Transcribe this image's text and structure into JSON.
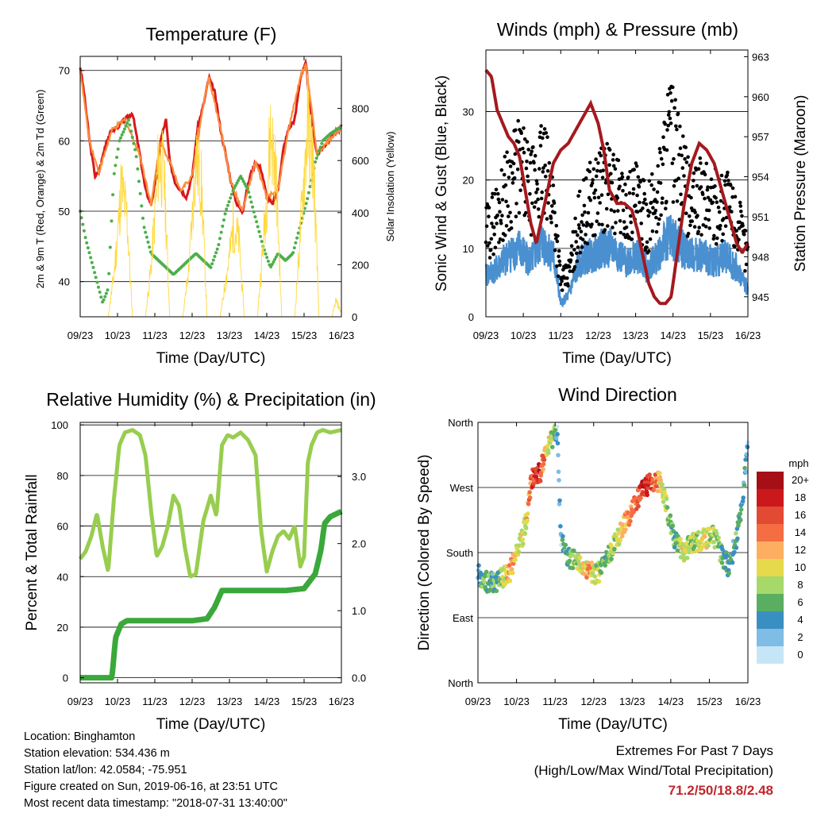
{
  "chart_data": [
    {
      "type": "line",
      "title": "Temperature (F)",
      "xlabel": "Time (Day/UTC)",
      "ylabel": "2m & 9m T (Red, Orange) & 2m Td (Green)",
      "y2label": "Solar Insolation (Yellow)",
      "x_ticks": [
        "09/23",
        "10/23",
        "11/23",
        "12/23",
        "13/23",
        "14/23",
        "15/23",
        "16/23"
      ],
      "ylim": [
        35,
        72
      ],
      "y_ticks": [
        40,
        50,
        60,
        70
      ],
      "y2lim": [
        0,
        1000
      ],
      "y2_ticks": [
        0,
        200,
        400,
        600,
        800
      ],
      "grid": true,
      "series": [
        {
          "name": "2m T",
          "color": "#d7191c",
          "x": [
            0,
            0.1,
            0.25,
            0.4,
            0.5,
            0.7,
            0.85,
            1,
            1.2,
            1.4,
            1.6,
            1.75,
            1.9,
            2.05,
            2.15,
            2.3,
            2.4,
            2.55,
            2.7,
            2.85,
            3,
            3.15,
            3.3,
            3.45,
            3.6,
            3.75,
            3.9,
            4.05,
            4.2,
            4.35,
            4.55,
            4.7,
            4.85,
            5,
            5.15,
            5.3,
            5.45,
            5.6,
            5.75,
            5.9,
            6.05,
            6.2,
            6.35,
            6.5,
            6.65,
            6.8,
            7
          ],
          "y": [
            70.5,
            67,
            60,
            55,
            55.5,
            60,
            61.5,
            62,
            63,
            64,
            58,
            53,
            51,
            55,
            60,
            63,
            57,
            54,
            53,
            52,
            55,
            62,
            65,
            69,
            67,
            62,
            58,
            54,
            51,
            50,
            55,
            57,
            56,
            52,
            51,
            53,
            59,
            62,
            63,
            69,
            71,
            63,
            58,
            59,
            60,
            61,
            62
          ]
        },
        {
          "name": "9m T",
          "color": "#fd8d3c",
          "x": [
            0,
            0.25,
            0.5,
            0.85,
            1.2,
            1.6,
            1.9,
            2.15,
            2.4,
            2.7,
            3,
            3.3,
            3.45,
            3.75,
            4.05,
            4.35,
            4.7,
            5,
            5.3,
            5.6,
            5.9,
            6.05,
            6.35,
            6.65,
            7
          ],
          "y": [
            70,
            60,
            55.5,
            61.5,
            63,
            58,
            51,
            60,
            57,
            53,
            55,
            65,
            69,
            62,
            54,
            50,
            57,
            52,
            53,
            62,
            69,
            71,
            58,
            60,
            62
          ]
        },
        {
          "name": "2m Td",
          "color": "#4daf4a",
          "x": [
            0,
            0.15,
            0.3,
            0.45,
            0.6,
            0.75,
            0.9,
            1.05,
            1.3,
            1.5,
            1.7,
            1.9,
            2.1,
            2.3,
            2.5,
            2.7,
            2.9,
            3.1,
            3.3,
            3.5,
            3.7,
            3.9,
            4.1,
            4.3,
            4.5,
            4.7,
            4.9,
            5.1,
            5.3,
            5.5,
            5.7,
            5.9,
            6.1,
            6.3,
            6.5,
            6.7,
            7
          ],
          "y": [
            50,
            46,
            43,
            40,
            37,
            39,
            55,
            60,
            63,
            58,
            48,
            44,
            43,
            42,
            41,
            42,
            43,
            44,
            43,
            42,
            45,
            50,
            53,
            55,
            53,
            49,
            45,
            42,
            44,
            43,
            44,
            48,
            52,
            57,
            60,
            61,
            62
          ]
        },
        {
          "name": "Solar Insolation",
          "color": "#ffd93d",
          "axis": "y2",
          "x": [
            0,
            0.75,
            0.9,
            1.0,
            1.1,
            1.25,
            1.4,
            1.75,
            1.9,
            2.0,
            2.1,
            2.25,
            2.4,
            2.75,
            2.9,
            3.0,
            3.1,
            3.25,
            3.4,
            3.75,
            3.9,
            4.0,
            4.1,
            4.25,
            4.4,
            4.75,
            4.9,
            5.0,
            5.1,
            5.25,
            5.4,
            5.75,
            5.9,
            6.0,
            6.1,
            6.25,
            6.4,
            6.75,
            6.85,
            7
          ],
          "y": [
            0,
            0,
            200,
            400,
            650,
            500,
            0,
            0,
            250,
            500,
            780,
            700,
            0,
            0,
            220,
            480,
            800,
            650,
            0,
            0,
            180,
            300,
            450,
            380,
            0,
            0,
            350,
            600,
            920,
            700,
            0,
            0,
            420,
            700,
            950,
            760,
            0,
            0,
            80,
            20
          ]
        }
      ]
    },
    {
      "type": "scatter",
      "title": "Winds (mph) & Pressure (mb)",
      "xlabel": "Time (Day/UTC)",
      "ylabel": "Sonic Wind & Gust (Blue, Black)",
      "y2label": "Station Pressure (Maroon)",
      "x_ticks": [
        "09/23",
        "10/23",
        "11/23",
        "12/23",
        "13/23",
        "14/23",
        "15/23",
        "16/23"
      ],
      "ylim": [
        0,
        39
      ],
      "y_ticks": [
        0,
        10,
        20,
        30
      ],
      "y2lim": [
        943.5,
        963.5
      ],
      "y2_ticks": [
        945,
        948,
        951,
        954,
        957,
        960,
        963
      ],
      "grid": true,
      "series": [
        {
          "name": "Sonic Wind",
          "color": "#4a90d0",
          "x": [
            0,
            0.3,
            0.6,
            0.9,
            1.2,
            1.5,
            1.8,
            2.0,
            2.2,
            2.5,
            2.8,
            3.1,
            3.4,
            3.7,
            4.0,
            4.3,
            4.6,
            4.9,
            5.2,
            5.5,
            5.8,
            6.1,
            6.4,
            6.7,
            7
          ],
          "y": [
            6,
            7,
            9,
            10,
            8,
            11,
            9,
            2,
            3,
            8,
            9,
            10,
            10,
            8,
            9,
            7,
            9,
            12,
            10,
            9,
            9,
            8,
            9,
            7,
            4
          ]
        },
        {
          "name": "Gust",
          "color": "#000000",
          "x": [
            0,
            0.3,
            0.6,
            0.9,
            1.2,
            1.5,
            1.8,
            2.0,
            2.2,
            2.5,
            2.8,
            3.1,
            3.4,
            3.7,
            4.0,
            4.3,
            4.6,
            4.9,
            5.2,
            5.5,
            5.8,
            6.1,
            6.4,
            6.7,
            7
          ],
          "y": [
            12,
            15,
            19,
            22,
            18,
            22,
            17,
            5,
            6,
            14,
            17,
            19,
            19,
            16,
            17,
            14,
            18,
            27,
            21,
            16,
            18,
            16,
            17,
            14,
            9
          ]
        },
        {
          "name": "Station Pressure",
          "color": "#a4191e",
          "axis": "y2",
          "x": [
            0,
            0.15,
            0.3,
            0.45,
            0.6,
            0.75,
            0.9,
            1.05,
            1.2,
            1.35,
            1.5,
            1.65,
            1.8,
            2.0,
            2.2,
            2.4,
            2.6,
            2.8,
            3.0,
            3.15,
            3.3,
            3.5,
            3.7,
            3.9,
            4.05,
            4.2,
            4.35,
            4.5,
            4.65,
            4.8,
            4.95,
            5.1,
            5.3,
            5.5,
            5.7,
            5.9,
            6.1,
            6.3,
            6.5,
            6.7,
            6.85,
            7
          ],
          "y": [
            962,
            961.5,
            959,
            958,
            957,
            956.5,
            955.5,
            953,
            950.5,
            949,
            951,
            953,
            955,
            956,
            956.5,
            957.5,
            958.5,
            959.5,
            958,
            956,
            953,
            952,
            952,
            951.5,
            950,
            948,
            946,
            945,
            944.5,
            944.5,
            945,
            948,
            952,
            955,
            956.5,
            956,
            955,
            953,
            951,
            949,
            948.3,
            949
          ]
        }
      ]
    },
    {
      "type": "line",
      "title": "Relative Humidity (%) & Precipitation (in)",
      "xlabel": "Time (Day/UTC)",
      "ylabel": "Percent & Total Rainfall",
      "x_ticks": [
        "09/23",
        "10/23",
        "11/23",
        "12/23",
        "13/23",
        "14/23",
        "15/23",
        "16/23"
      ],
      "ylim": [
        -2,
        101
      ],
      "y_ticks": [
        0,
        20,
        40,
        60,
        80,
        100
      ],
      "y2lim": [
        -0.0754,
        3.807
      ],
      "y2_ticks": [
        "0.0",
        "1.0",
        "2.0",
        "3.0"
      ],
      "grid": true,
      "series": [
        {
          "name": "Relative Humidity",
          "color": "#98cd4f",
          "x": [
            0,
            0.15,
            0.3,
            0.45,
            0.6,
            0.75,
            0.9,
            1.05,
            1.2,
            1.4,
            1.6,
            1.75,
            1.9,
            2.05,
            2.2,
            2.35,
            2.5,
            2.65,
            2.8,
            2.95,
            3.1,
            3.3,
            3.5,
            3.65,
            3.8,
            3.95,
            4.1,
            4.3,
            4.5,
            4.7,
            4.85,
            5.0,
            5.15,
            5.3,
            5.45,
            5.6,
            5.75,
            5.9,
            6.0,
            6.1,
            6.2,
            6.35,
            6.5,
            6.7,
            7
          ],
          "y": [
            47,
            50,
            56,
            65,
            52,
            42,
            70,
            92,
            97,
            98,
            96,
            88,
            66,
            48,
            52,
            60,
            72,
            68,
            52,
            40,
            41,
            62,
            72,
            64,
            92,
            96,
            95,
            97,
            94,
            88,
            58,
            42,
            50,
            56,
            58,
            55,
            60,
            44,
            48,
            85,
            92,
            97,
            98,
            97,
            98
          ]
        },
        {
          "name": "Total Precipitation",
          "color": "#3aa83a",
          "axis": "y2",
          "x": [
            0,
            0.3,
            0.6,
            0.85,
            0.95,
            1.1,
            1.25,
            1.5,
            2.0,
            2.5,
            3.0,
            3.4,
            3.6,
            3.8,
            4.0,
            4.5,
            5.0,
            5.5,
            6.0,
            6.3,
            6.45,
            6.55,
            6.7,
            7
          ],
          "y": [
            0,
            0,
            0,
            0,
            0.6,
            0.8,
            0.85,
            0.85,
            0.85,
            0.85,
            0.85,
            0.88,
            1.05,
            1.3,
            1.3,
            1.3,
            1.3,
            1.3,
            1.33,
            1.55,
            1.9,
            2.3,
            2.4,
            2.48
          ]
        }
      ]
    },
    {
      "type": "scatter",
      "title": "Wind Direction",
      "xlabel": "Time (Day/UTC)",
      "ylabel": "Direction (Colored By Speed)",
      "x_ticks": [
        "09/23",
        "10/23",
        "11/23",
        "12/23",
        "13/23",
        "14/23",
        "15/23",
        "16/23"
      ],
      "y_tick_labels": [
        "North",
        "East",
        "South",
        "West",
        "North"
      ],
      "ylim": [
        0,
        360
      ],
      "grid": true,
      "colorbar": {
        "title": "mph",
        "labels": [
          "20+",
          "18",
          "16",
          "14",
          "12",
          "10",
          "8",
          "6",
          "4",
          "2",
          "0"
        ],
        "colors": [
          "#a50f15",
          "#cb181d",
          "#e34a33",
          "#f46d43",
          "#fdae61",
          "#e6d94b",
          "#a6d96a",
          "#5aae61",
          "#3a8fc2",
          "#7fbce6",
          "#c6e6f8"
        ]
      },
      "series": [
        {
          "name": "Wind Direction",
          "x": [
            0,
            0.2,
            0.4,
            0.6,
            0.8,
            1.0,
            1.2,
            1.4,
            1.6,
            1.8,
            1.95,
            2.05,
            2.15,
            2.3,
            2.5,
            2.7,
            2.9,
            3.1,
            3.3,
            3.5,
            3.7,
            3.9,
            4.1,
            4.3,
            4.5,
            4.7,
            4.9,
            5.1,
            5.3,
            5.5,
            5.7,
            5.9,
            6.1,
            6.3,
            6.5,
            6.7,
            6.85,
            7
          ],
          "y": [
            150,
            140,
            138,
            145,
            150,
            180,
            210,
            280,
            290,
            320,
            340,
            350,
            200,
            175,
            170,
            160,
            155,
            150,
            165,
            190,
            210,
            230,
            250,
            270,
            275,
            280,
            240,
            200,
            180,
            190,
            195,
            200,
            205,
            180,
            160,
            200,
            250,
            330
          ],
          "speeds": [
            4,
            6,
            5,
            8,
            12,
            10,
            8,
            16,
            18,
            10,
            8,
            3,
            2,
            6,
            8,
            10,
            12,
            8,
            6,
            8,
            10,
            12,
            14,
            18,
            16,
            12,
            8,
            6,
            10,
            8,
            8,
            10,
            8,
            6,
            4,
            6,
            4,
            3
          ]
        }
      ]
    }
  ],
  "info": {
    "location": "Location: Binghamton",
    "elevation": "Station elevation: 534.436 m",
    "latlon": "Station lat/lon: 42.0584; -75.951",
    "created": "Figure created on Sun, 2019-06-16, at 23:51 UTC",
    "recent": "Most recent data timestamp: \"2018-07-31 13:40:00\""
  },
  "extremes": {
    "title": "Extremes For Past 7 Days",
    "subtitle": "(High/Low/Max Wind/Total Precipitation)",
    "value": "71.2/50/18.8/2.48"
  }
}
